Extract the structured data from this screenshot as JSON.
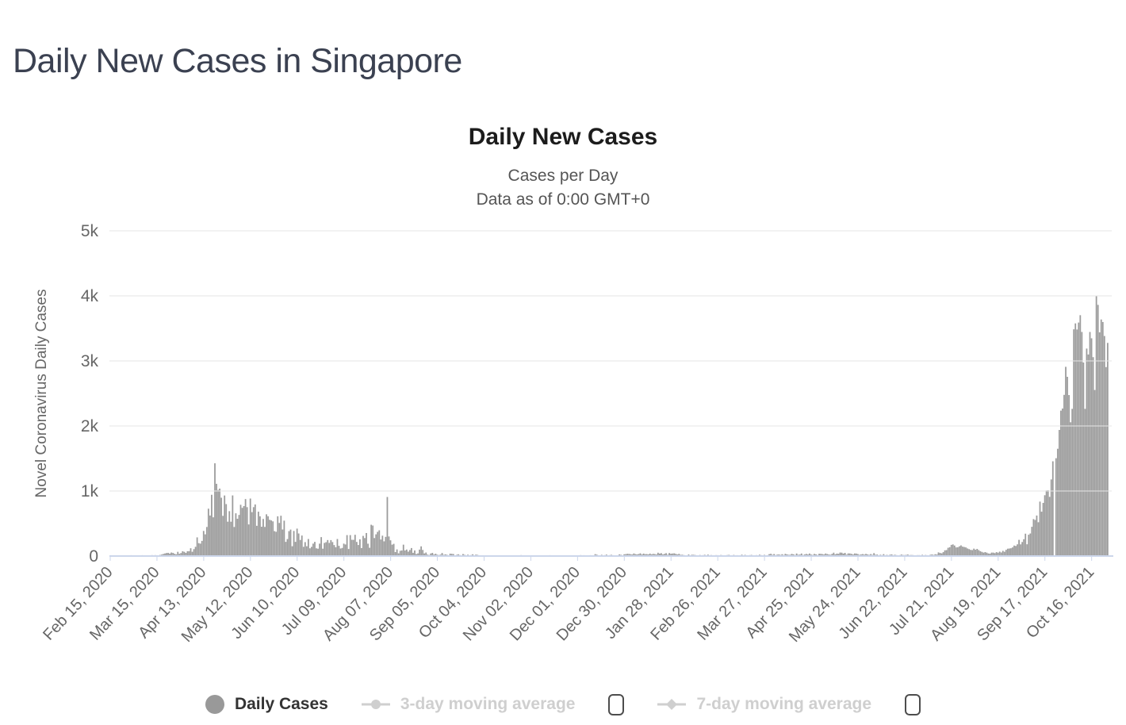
{
  "page_title": "Daily New Cases in Singapore",
  "colors": {
    "bar": "#9c9c9c",
    "grid": "#e6e6e6",
    "axis_line": "#ccd6eb",
    "tick_text": "#666666",
    "legend_active_text": "#333333",
    "legend_disabled": "#cfcfcf",
    "legend_marker": "#999999"
  },
  "chart_data": {
    "type": "bar",
    "title": "Daily New Cases",
    "subtitle": [
      "Cases per Day",
      "Data as of 0:00 GMT+0"
    ],
    "ylabel": "Novel Coronavirus Daily Cases",
    "xlabel": "",
    "ylim": [
      0,
      5000
    ],
    "y_ticks": [
      "0",
      "1k",
      "2k",
      "3k",
      "4k",
      "5k"
    ],
    "grid": true,
    "legend_position": "bottom",
    "legend_entries": [
      "Daily Cases",
      "3-day moving average",
      "7-day moving average"
    ],
    "legend_enabled": [
      true,
      false,
      false
    ],
    "start_date": "Feb 15, 2020",
    "end_date": "Oct 26, 2021",
    "x_tick_interval_days": 29,
    "x_tick_labels": [
      "Feb 15, 2020",
      "Mar 15, 2020",
      "Apr 13, 2020",
      "May 12, 2020",
      "Jun 10, 2020",
      "Jul 09, 2020",
      "Aug 07, 2020",
      "Sep 05, 2020",
      "Oct 04, 2020",
      "Nov 02, 2020",
      "Dec 01, 2020",
      "Dec 30, 2020",
      "Jan 28, 2021",
      "Feb 26, 2021",
      "Mar 27, 2021",
      "Apr 25, 2021",
      "May 24, 2021",
      "Jun 22, 2021",
      "Jul 21, 2021",
      "Aug 19, 2021",
      "Sep 17, 2021",
      "Oct 16, 2021"
    ],
    "series_name": "Daily Cases",
    "values": [
      3,
      5,
      3,
      4,
      2,
      4,
      5,
      3,
      5,
      2,
      2,
      7,
      9,
      13,
      9,
      6,
      12,
      8,
      10,
      12,
      13,
      9,
      12,
      6,
      10,
      12,
      14,
      9,
      14,
      5,
      11,
      17,
      23,
      32,
      40,
      47,
      49,
      38,
      54,
      49,
      35,
      27,
      65,
      35,
      47,
      74,
      65,
      49,
      74,
      75,
      120,
      66,
      106,
      142,
      287,
      198,
      191,
      233,
      386,
      334,
      447,
      728,
      623,
      942,
      596,
      1426,
      1111,
      1016,
      1037,
      897,
      618,
      931,
      799,
      528,
      690,
      528,
      932,
      447,
      657,
      573,
      632,
      788,
      741,
      768,
      876,
      752,
      486,
      884,
      675,
      752,
      793,
      465,
      682,
      611,
      451,
      570,
      448,
      642,
      612,
      557,
      548,
      533,
      383,
      373,
      611,
      509,
      620,
      408,
      544,
      218,
      261,
      383,
      407,
      151,
      386,
      218,
      422,
      347,
      247,
      315,
      142,
      214,
      151,
      262,
      119,
      142,
      191,
      218,
      119,
      113,
      191,
      291,
      113,
      202,
      213,
      246,
      202,
      245,
      215,
      169,
      136,
      262,
      157,
      116,
      125,
      191,
      178,
      322,
      108,
      322,
      250,
      249,
      327,
      217,
      170,
      257,
      123,
      310,
      277,
      354,
      190,
      128,
      481,
      469,
      277,
      334,
      372,
      396,
      254,
      313,
      226,
      295,
      908,
      301,
      242,
      175,
      188,
      61,
      102,
      42,
      81,
      86,
      175,
      86,
      100,
      68,
      93,
      123,
      50,
      86,
      31,
      41,
      99,
      149,
      94,
      41,
      54,
      22,
      16,
      40,
      49,
      23,
      36,
      20,
      15,
      22,
      47,
      18,
      26,
      19,
      13,
      37,
      34,
      31,
      9,
      18,
      27,
      15,
      12,
      31,
      18,
      12,
      21,
      11,
      15,
      27,
      12,
      22,
      18,
      10,
      7,
      12,
      4,
      9,
      7,
      11,
      6,
      10,
      4,
      7,
      8,
      5,
      3,
      4,
      10,
      7,
      6,
      12,
      3,
      8,
      6,
      5,
      10,
      3,
      7,
      14,
      8,
      7,
      6,
      9,
      4,
      9,
      7,
      5,
      8,
      12,
      9,
      7,
      5,
      8,
      6,
      4,
      9,
      13,
      5,
      4,
      7,
      9,
      5,
      6,
      12,
      5,
      9,
      5,
      11,
      8,
      7,
      10,
      6,
      8,
      10,
      12,
      14,
      8,
      13,
      12,
      5,
      11,
      13,
      9,
      12,
      29,
      21,
      13,
      8,
      19,
      12,
      14,
      22,
      9,
      14,
      19,
      13,
      9,
      5,
      12,
      25,
      19,
      10,
      27,
      30,
      35,
      33,
      28,
      24,
      40,
      29,
      25,
      31,
      42,
      24,
      38,
      29,
      30,
      26,
      38,
      27,
      34,
      30,
      24,
      51,
      38,
      44,
      25,
      33,
      44,
      20,
      46,
      36,
      39,
      42,
      34,
      25,
      34,
      19,
      20,
      15,
      10,
      12,
      24,
      11,
      20,
      19,
      16,
      9,
      12,
      16,
      10,
      14,
      19,
      11,
      22,
      8,
      15,
      12,
      9,
      14,
      13,
      9,
      16,
      13,
      9,
      12,
      15,
      18,
      9,
      12,
      17,
      9,
      13,
      10,
      9,
      21,
      9,
      18,
      12,
      9,
      14,
      17,
      10,
      12,
      14,
      9,
      21,
      14,
      10,
      18,
      12,
      14,
      29,
      35,
      19,
      31,
      15,
      22,
      25,
      17,
      28,
      16,
      34,
      26,
      19,
      20,
      33,
      27,
      16,
      39,
      20,
      23,
      39,
      16,
      25,
      33,
      24,
      39,
      23,
      17,
      33,
      26,
      16,
      35,
      34,
      30,
      25,
      39,
      31,
      24,
      20,
      33,
      52,
      26,
      38,
      34,
      54,
      52,
      38,
      49,
      21,
      41,
      40,
      34,
      24,
      40,
      38,
      30,
      19,
      25,
      30,
      22,
      33,
      25,
      18,
      30,
      18,
      45,
      20,
      23,
      13,
      20,
      14,
      29,
      13,
      18,
      13,
      21,
      25,
      14,
      20,
      14,
      11,
      14,
      23,
      16,
      15,
      18,
      23,
      14,
      16,
      15,
      12,
      10,
      14,
      14,
      12,
      19,
      12,
      16,
      13,
      12,
      20,
      25,
      17,
      28,
      23,
      56,
      48,
      42,
      60,
      88,
      92,
      127,
      136,
      172,
      179,
      162,
      133,
      135,
      150,
      164,
      145,
      139,
      133,
      117,
      107,
      95,
      92,
      114,
      98,
      110,
      92,
      75,
      64,
      53,
      61,
      52,
      40,
      37,
      53,
      53,
      45,
      60,
      52,
      68,
      55,
      80,
      66,
      96,
      113,
      116,
      120,
      133,
      161,
      155,
      180,
      249,
      180,
      216,
      259,
      344,
      181,
      328,
      347,
      450,
      568,
      555,
      623,
      520,
      837,
      682,
      817,
      935,
      1009,
      1012,
      910,
      1178,
      1457,
      0,
      1504,
      1650,
      1939,
      2236,
      2268,
      2478,
      2909,
      2756,
      2475,
      2057,
      2263,
      3486,
      3577,
      3483,
      3590,
      3703,
      3445,
      2976,
      2263,
      3190,
      3099,
      3445,
      3348,
      3058,
      2553,
      3994,
      3862,
      3439,
      3637,
      3598,
      3383,
      2905,
      3277
    ]
  }
}
